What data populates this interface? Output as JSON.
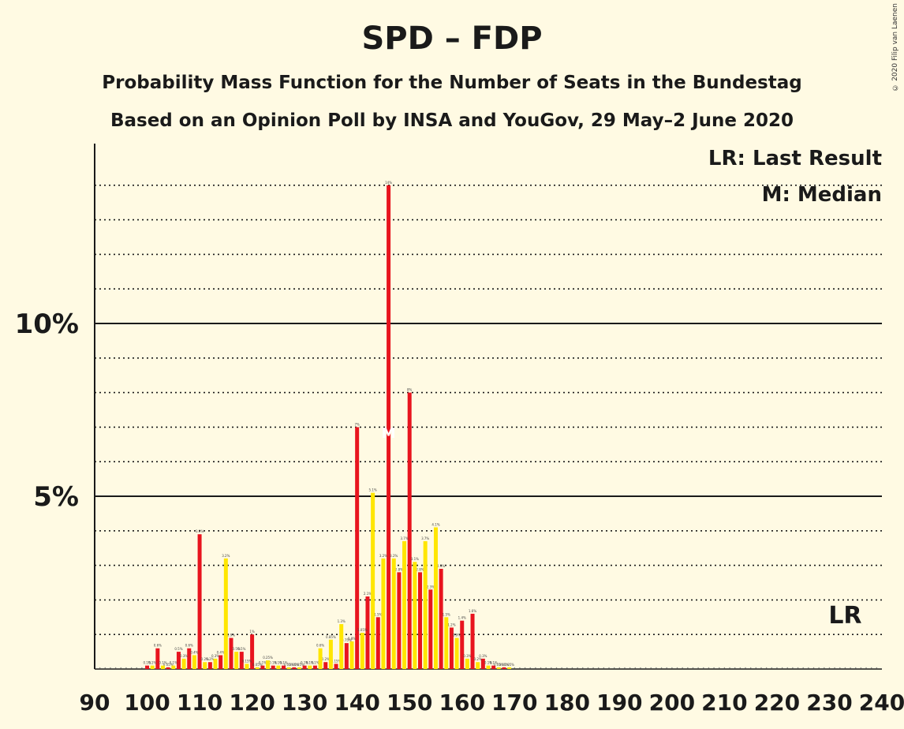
{
  "title": "SPD – FDP",
  "subtitle": "Probability Mass Function for the Number of Seats in the Bundestag",
  "subtitle2": "Based on an Opinion Poll by INSA and YouGov, 29 May–2 June 2020",
  "copyright": "© 2020 Filip van Laenen",
  "legend": {
    "lr": "LR: Last Result",
    "m": "M: Median"
  },
  "markers": {
    "lr_label": "LR",
    "lr_seat": 233,
    "median_label": "M",
    "median_seat": 146
  },
  "colors": {
    "red": "#e8141e",
    "yellow": "#ffe600",
    "background": "#fffae3",
    "axis": "#1a1a1a"
  },
  "chart_data": {
    "type": "bar",
    "xlabel": "",
    "ylabel": "",
    "xlim": [
      90,
      240
    ],
    "ylim": [
      0,
      15.2
    ],
    "x_ticks": [
      90,
      100,
      110,
      120,
      130,
      140,
      150,
      160,
      170,
      180,
      190,
      200,
      210,
      220,
      230,
      240
    ],
    "y_tick_labels": [
      {
        "value": 5,
        "label": "5%"
      },
      {
        "value": 10,
        "label": "10%"
      }
    ],
    "y_gridlines": [
      1,
      2,
      3,
      4,
      5,
      6,
      7,
      8,
      9,
      10,
      11,
      12,
      13,
      14
    ],
    "series": [
      {
        "color": "red",
        "points": [
          [
            100,
            0.1
          ],
          [
            102,
            0.6
          ],
          [
            104,
            0.05
          ],
          [
            106,
            0.5
          ],
          [
            108,
            0.6
          ],
          [
            110,
            3.9
          ],
          [
            112,
            0.2
          ],
          [
            114,
            0.4
          ],
          [
            116,
            0.9
          ],
          [
            118,
            0.5
          ],
          [
            120,
            1.0
          ],
          [
            122,
            0.1
          ],
          [
            124,
            0.1
          ],
          [
            126,
            0.1
          ],
          [
            128,
            0.05
          ],
          [
            130,
            0.1
          ],
          [
            132,
            0.1
          ],
          [
            134,
            0.2
          ],
          [
            136,
            0.15
          ],
          [
            138,
            0.75
          ],
          [
            140,
            7.0
          ],
          [
            142,
            2.1
          ],
          [
            144,
            1.5
          ],
          [
            146,
            14.0
          ],
          [
            148,
            2.8
          ],
          [
            150,
            8.0
          ],
          [
            152,
            2.8
          ],
          [
            154,
            2.3
          ],
          [
            156,
            2.9
          ],
          [
            158,
            1.2
          ],
          [
            160,
            1.4
          ],
          [
            162,
            1.6
          ],
          [
            164,
            0.3
          ],
          [
            166,
            0.1
          ],
          [
            168,
            0.05
          ]
        ]
      },
      {
        "color": "yellow",
        "points": [
          [
            101,
            0.1
          ],
          [
            103,
            0.1
          ],
          [
            105,
            0.1
          ],
          [
            107,
            0.3
          ],
          [
            109,
            0.4
          ],
          [
            111,
            0.2
          ],
          [
            113,
            0.3
          ],
          [
            115,
            3.2
          ],
          [
            117,
            0.5
          ],
          [
            119,
            0.15
          ],
          [
            121,
            0.05
          ],
          [
            123,
            0.25
          ],
          [
            125,
            0.1
          ],
          [
            127,
            0.05
          ],
          [
            129,
            0.05
          ],
          [
            131,
            0.1
          ],
          [
            133,
            0.6
          ],
          [
            135,
            0.85
          ],
          [
            137,
            1.3
          ],
          [
            139,
            0.8
          ],
          [
            141,
            1.05
          ],
          [
            143,
            5.1
          ],
          [
            145,
            3.2
          ],
          [
            147,
            3.2
          ],
          [
            149,
            3.7
          ],
          [
            151,
            3.1
          ],
          [
            153,
            3.7
          ],
          [
            155,
            4.1
          ],
          [
            157,
            1.5
          ],
          [
            159,
            0.9
          ],
          [
            161,
            0.3
          ],
          [
            163,
            0.2
          ],
          [
            165,
            0.1
          ],
          [
            167,
            0.05
          ],
          [
            169,
            0.05
          ]
        ]
      }
    ]
  }
}
